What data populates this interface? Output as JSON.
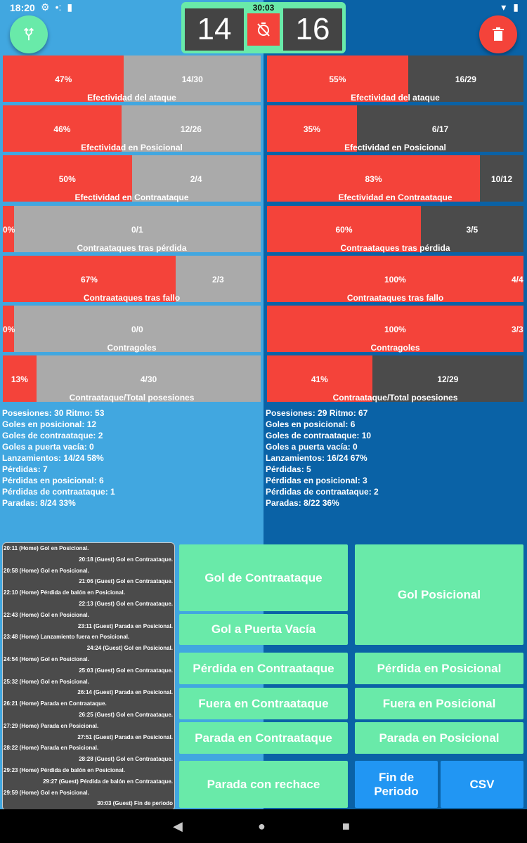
{
  "statusbar": {
    "time": "18:20"
  },
  "clock": "30:03",
  "score": {
    "home": "14",
    "guest": "16"
  },
  "home_stats": [
    {
      "pct": "47%",
      "frac": "14/30",
      "label": "Efectividad del ataque",
      "fill": 0.47
    },
    {
      "pct": "46%",
      "frac": "12/26",
      "label": "Efectividad en Posicional",
      "fill": 0.46
    },
    {
      "pct": "50%",
      "frac": "2/4",
      "label": "Efectividad en Contraataque",
      "fill": 0.5
    },
    {
      "pct": "0%",
      "frac": "0/1",
      "label": "Contraataques tras pérdida",
      "fill": 0.0
    },
    {
      "pct": "67%",
      "frac": "2/3",
      "label": "Contraataques tras fallo",
      "fill": 0.67
    },
    {
      "pct": "0%",
      "frac": "0/0",
      "label": "Contragoles",
      "fill": 0.0
    },
    {
      "pct": "13%",
      "frac": "4/30",
      "label": "Contraataque/Total posesiones",
      "fill": 0.13
    }
  ],
  "guest_stats": [
    {
      "pct": "55%",
      "frac": "16/29",
      "label": "Efectividad del ataque",
      "fill": 0.55
    },
    {
      "pct": "35%",
      "frac": "6/17",
      "label": "Efectividad en Posicional",
      "fill": 0.35
    },
    {
      "pct": "83%",
      "frac": "10/12",
      "label": "Efectividad en Contraataque",
      "fill": 0.83
    },
    {
      "pct": "60%",
      "frac": "3/5",
      "label": "Contraataques tras pérdida",
      "fill": 0.6
    },
    {
      "pct": "100%",
      "frac": "4/4",
      "label": "Contraataques tras fallo",
      "fill": 1.0
    },
    {
      "pct": "100%",
      "frac": "3/3",
      "label": "Contragoles",
      "fill": 1.0
    },
    {
      "pct": "41%",
      "frac": "12/29",
      "label": "Contraataque/Total posesiones",
      "fill": 0.41
    }
  ],
  "home_info": [
    "Posesiones: 30 Ritmo: 53",
    "Goles en posicional: 12",
    "Goles de contraataque: 2",
    "Goles a puerta vacía: 0",
    "Lanzamientos: 14/24 58%",
    "Pérdidas: 7",
    "Pérdidas en posicional: 6",
    "Pérdidas de contraataque: 1",
    "Paradas: 8/24 33%"
  ],
  "guest_info": [
    "Posesiones: 29 Ritmo: 67",
    "Goles en posicional: 6",
    "Goles de contraataque: 10",
    "Goles a puerta vacía: 0",
    "Lanzamientos: 16/24 67%",
    "Pérdidas: 5",
    "Pérdidas en posicional: 3",
    "Pérdidas de contraataque: 2",
    "Paradas: 8/22 36%"
  ],
  "log": [
    {
      "side": "home",
      "text": "20:11 (Home) Gol en Posicional."
    },
    {
      "side": "guest",
      "text": "20:18 (Guest) Gol en Contraataque."
    },
    {
      "side": "home",
      "text": "20:58 (Home) Gol en Posicional."
    },
    {
      "side": "guest",
      "text": "21:06 (Guest) Gol en Contraataque."
    },
    {
      "side": "home",
      "text": "22:10 (Home) Pérdida de balón en Posicional."
    },
    {
      "side": "guest",
      "text": "22:13 (Guest) Gol en Contraataque."
    },
    {
      "side": "home",
      "text": "22:43 (Home) Gol en Posicional."
    },
    {
      "side": "guest",
      "text": "23:11 (Guest) Parada en Posicional."
    },
    {
      "side": "home",
      "text": "23:48 (Home) Lanzamiento fuera en Posicional."
    },
    {
      "side": "guest",
      "text": "24:24 (Guest) Gol en Posicional."
    },
    {
      "side": "home",
      "text": "24:54 (Home) Gol en Posicional."
    },
    {
      "side": "guest",
      "text": "25:03 (Guest) Gol en Contraataque."
    },
    {
      "side": "home",
      "text": "25:32 (Home) Gol en Posicional."
    },
    {
      "side": "guest",
      "text": "26:14 (Guest) Parada en Posicional."
    },
    {
      "side": "home",
      "text": "26:21 (Home) Parada en Contraataque."
    },
    {
      "side": "guest",
      "text": "26:25 (Guest) Gol en Contraataque."
    },
    {
      "side": "home",
      "text": "27:29 (Home) Parada en Posicional."
    },
    {
      "side": "guest",
      "text": "27:51 (Guest) Parada en Posicional."
    },
    {
      "side": "home",
      "text": "28:22 (Home) Parada en Posicional."
    },
    {
      "side": "guest",
      "text": "28:28 (Guest) Gol en Contraataque."
    },
    {
      "side": "home",
      "text": "29:23 (Home) Pérdida de balón en Posicional."
    },
    {
      "side": "guest",
      "text": "29:27 (Guest) Pérdida de balón en Contraataque."
    },
    {
      "side": "home",
      "text": "29:59 (Home) Gol en Posicional."
    },
    {
      "side": "guest",
      "text": "30:03 (Guest) Fin de periodo"
    }
  ],
  "buttons": {
    "gol_contraataque": "Gol de Contraataque",
    "gol_posicional": "Gol Posicional",
    "gol_puerta_vacia": "Gol a Puerta Vacía",
    "perdida_contraataque": "Pérdida en Contraataque",
    "perdida_posicional": "Pérdida en Posicional",
    "fuera_contraataque": "Fuera en Contraataque",
    "fuera_posicional": "Fuera en Posicional",
    "parada_contraataque": "Parada en Contraataque",
    "parada_posicional": "Parada en Posicional",
    "parada_rechace": "Parada con rechace",
    "fin_periodo": "Fin de Periodo",
    "csv": "CSV"
  },
  "colors": {
    "home": "#41a7e0",
    "guest": "#0a62a6",
    "accent_green": "#69eaa9",
    "accent_red": "#f4433a",
    "accent_blue": "#2196f3"
  },
  "icons": {
    "fab_left": "swap-icon",
    "fab_right": "trash-icon",
    "timer": "timer-off-icon"
  }
}
